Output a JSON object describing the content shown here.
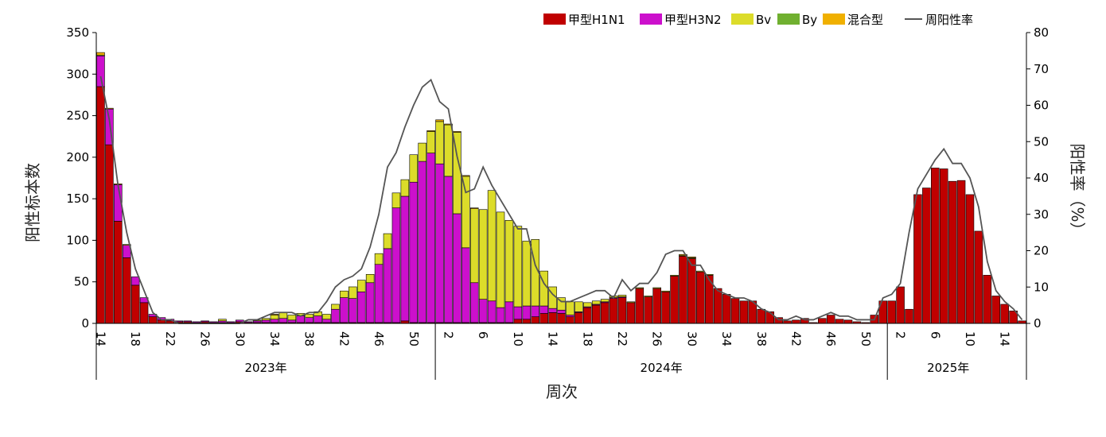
{
  "chart_data": {
    "type": "bar",
    "stacked": true,
    "xlabel": "周次",
    "ylabel": "阳性标本数",
    "y2label": "阳性率（%）",
    "ylim": [
      0,
      350
    ],
    "y2lim": [
      0,
      80
    ],
    "yticks": [
      "0",
      "50",
      "100",
      "150",
      "200",
      "250",
      "300",
      "350"
    ],
    "y2ticks": [
      "0",
      "10",
      "20",
      "30",
      "40",
      "50",
      "60",
      "70",
      "80"
    ],
    "grid": false,
    "legend_position": "top-right",
    "x_tick_labels": [
      {
        "i": 0,
        "label": "14"
      },
      {
        "i": 4,
        "label": "18"
      },
      {
        "i": 8,
        "label": "22"
      },
      {
        "i": 12,
        "label": "26"
      },
      {
        "i": 16,
        "label": "30"
      },
      {
        "i": 20,
        "label": "34"
      },
      {
        "i": 24,
        "label": "38"
      },
      {
        "i": 28,
        "label": "42"
      },
      {
        "i": 32,
        "label": "46"
      },
      {
        "i": 36,
        "label": "50"
      },
      {
        "i": 40,
        "label": "2"
      },
      {
        "i": 44,
        "label": "6"
      },
      {
        "i": 48,
        "label": "10"
      },
      {
        "i": 52,
        "label": "14"
      },
      {
        "i": 56,
        "label": "18"
      },
      {
        "i": 60,
        "label": "22"
      },
      {
        "i": 64,
        "label": "26"
      },
      {
        "i": 68,
        "label": "30"
      },
      {
        "i": 72,
        "label": "34"
      },
      {
        "i": 76,
        "label": "38"
      },
      {
        "i": 80,
        "label": "42"
      },
      {
        "i": 84,
        "label": "46"
      },
      {
        "i": 88,
        "label": "50"
      },
      {
        "i": 92,
        "label": "2"
      },
      {
        "i": 96,
        "label": "6"
      },
      {
        "i": 100,
        "label": "10"
      },
      {
        "i": 104,
        "label": "14"
      }
    ],
    "year_groups": [
      {
        "label": "2023年",
        "start": 0,
        "end": 39
      },
      {
        "label": "2024年",
        "start": 39,
        "end": 91
      },
      {
        "label": "2025年",
        "start": 91,
        "end": 105
      }
    ],
    "series": [
      {
        "name": "甲型H1N1",
        "color": "#C00000",
        "values": [
          285,
          215,
          123,
          79,
          46,
          25,
          8,
          4,
          3,
          2,
          2,
          1,
          2,
          1,
          1,
          1,
          2,
          1,
          1,
          1,
          1,
          1,
          1,
          1,
          1,
          1,
          1,
          1,
          1,
          1,
          1,
          1,
          1,
          1,
          1,
          3,
          1,
          1,
          1,
          1,
          1,
          1,
          1,
          1,
          1,
          1,
          1,
          1,
          5,
          5,
          8,
          12,
          13,
          12,
          8,
          13,
          19,
          22,
          25,
          30,
          31,
          25,
          42,
          32,
          42,
          38,
          57,
          81,
          78,
          62,
          58,
          42,
          35,
          30,
          27,
          27,
          17,
          14,
          7,
          3,
          4,
          6,
          1,
          6,
          10,
          5,
          4,
          2,
          1,
          10,
          27,
          27,
          44,
          17,
          155,
          163,
          187,
          186,
          171,
          172,
          155,
          111,
          58,
          33,
          23,
          15,
          3
        ]
      },
      {
        "name": "甲型H3N2",
        "color": "#CC10CC",
        "values": [
          37,
          43,
          44,
          15,
          10,
          6,
          3,
          3,
          2,
          1,
          1,
          1,
          1,
          1,
          2,
          1,
          2,
          1,
          2,
          3,
          4,
          5,
          3,
          8,
          6,
          8,
          4,
          16,
          30,
          29,
          37,
          48,
          70,
          89,
          138,
          150,
          169,
          194,
          204,
          191,
          176,
          131,
          90,
          48,
          28,
          26,
          18,
          25,
          15,
          16,
          13,
          9,
          5,
          4,
          2,
          1,
          1,
          1,
          1,
          1,
          1,
          0,
          0,
          0,
          0,
          0,
          0,
          0,
          0,
          0,
          0,
          0,
          0,
          0,
          0,
          0,
          0,
          0,
          0,
          0,
          0,
          0,
          0,
          0,
          0,
          0,
          0,
          0,
          0,
          0,
          0,
          0,
          0,
          0,
          0,
          0,
          0,
          0,
          0,
          0,
          0,
          0,
          0,
          0,
          0,
          0
        ]
      },
      {
        "name": "Bv",
        "color": "#DCDC2A",
        "values": [
          1,
          0,
          0,
          0,
          0,
          0,
          0,
          0,
          0,
          0,
          0,
          0,
          0,
          0,
          2,
          0,
          0,
          0,
          1,
          2,
          5,
          7,
          6,
          3,
          4,
          5,
          6,
          6,
          8,
          14,
          14,
          10,
          13,
          18,
          18,
          20,
          33,
          22,
          26,
          51,
          62,
          98,
          86,
          89,
          108,
          133,
          115,
          98,
          97,
          78,
          80,
          42,
          26,
          15,
          16,
          12,
          5,
          4,
          3,
          2,
          2,
          1,
          1,
          1,
          1,
          1,
          1,
          1,
          1,
          1,
          1,
          0,
          0,
          0,
          0,
          0,
          0,
          0,
          0,
          0,
          0,
          0,
          0,
          0,
          0,
          0,
          0,
          0,
          0,
          0,
          0,
          0,
          0,
          0,
          0,
          0,
          0,
          0,
          0,
          0,
          0,
          0,
          0,
          0,
          0,
          0,
          0
        ]
      },
      {
        "name": "By",
        "color": "#70B030",
        "values": [
          0,
          0,
          0,
          0,
          0,
          0,
          0,
          0,
          0,
          0,
          0,
          0,
          0,
          0,
          0,
          0,
          0,
          0,
          0,
          0,
          0,
          0,
          0,
          0,
          0,
          0,
          0,
          0,
          0,
          0,
          0,
          0,
          0,
          0,
          0,
          0,
          0,
          0,
          0,
          0,
          0,
          0,
          0,
          0,
          0,
          0,
          0,
          0,
          0,
          0,
          0,
          0,
          0,
          0,
          0,
          0,
          0,
          0,
          0,
          0,
          0,
          0,
          0,
          0,
          0,
          0,
          0,
          0,
          0,
          0,
          0,
          0,
          0,
          0,
          0,
          0,
          0,
          0,
          0,
          0,
          0,
          0,
          0,
          0,
          0,
          0,
          0,
          0,
          0,
          0,
          0,
          0,
          0,
          0,
          0,
          0,
          0,
          0,
          0,
          0,
          0,
          0,
          0,
          0,
          0,
          0,
          0
        ]
      },
      {
        "name": "混合型",
        "color": "#F0B000",
        "values": [
          3,
          1,
          1,
          1,
          0,
          0,
          0,
          0,
          0,
          0,
          0,
          0,
          0,
          0,
          0,
          0,
          0,
          0,
          0,
          0,
          1,
          0,
          0,
          0,
          0,
          0,
          0,
          0,
          0,
          0,
          0,
          0,
          0,
          0,
          0,
          0,
          0,
          0,
          1,
          2,
          1,
          1,
          1,
          1,
          0,
          0,
          0,
          0,
          0,
          0,
          0,
          0,
          0,
          0,
          0,
          0,
          0,
          0,
          0,
          0,
          0,
          0,
          0,
          0,
          0,
          0,
          0,
          1,
          1,
          0,
          0,
          0,
          0,
          0,
          0,
          0,
          0,
          0,
          0,
          0,
          0,
          0,
          0,
          0,
          0,
          0,
          0,
          0,
          0,
          0,
          0,
          0,
          0,
          0,
          0,
          0,
          0,
          0,
          0,
          0,
          0,
          0,
          0,
          0,
          0,
          0
        ]
      }
    ],
    "line_series": {
      "name": "周阳性率",
      "color": "#555555",
      "axis": "right",
      "values": [
        68,
        56,
        38,
        25,
        15,
        9,
        3,
        1,
        1,
        0,
        0,
        0,
        0,
        0,
        0,
        0,
        0,
        1,
        1,
        2,
        3,
        3,
        3,
        2,
        3,
        3,
        6,
        10,
        12,
        13,
        15,
        21,
        30,
        43,
        47,
        54,
        60,
        65,
        67,
        61,
        59,
        46,
        36,
        37,
        43,
        38,
        34,
        30,
        26,
        26,
        16,
        11,
        8,
        6,
        6,
        7,
        8,
        9,
        9,
        7,
        12,
        9,
        11,
        11,
        14,
        19,
        20,
        20,
        16,
        16,
        12,
        9,
        8,
        7,
        7,
        6,
        4,
        3,
        1,
        1,
        2,
        1,
        1,
        2,
        3,
        2,
        2,
        1,
        1,
        1,
        7,
        8,
        11,
        25,
        37,
        41,
        45,
        48,
        44,
        44,
        40,
        32,
        17,
        9,
        6,
        4,
        1
      ]
    }
  }
}
